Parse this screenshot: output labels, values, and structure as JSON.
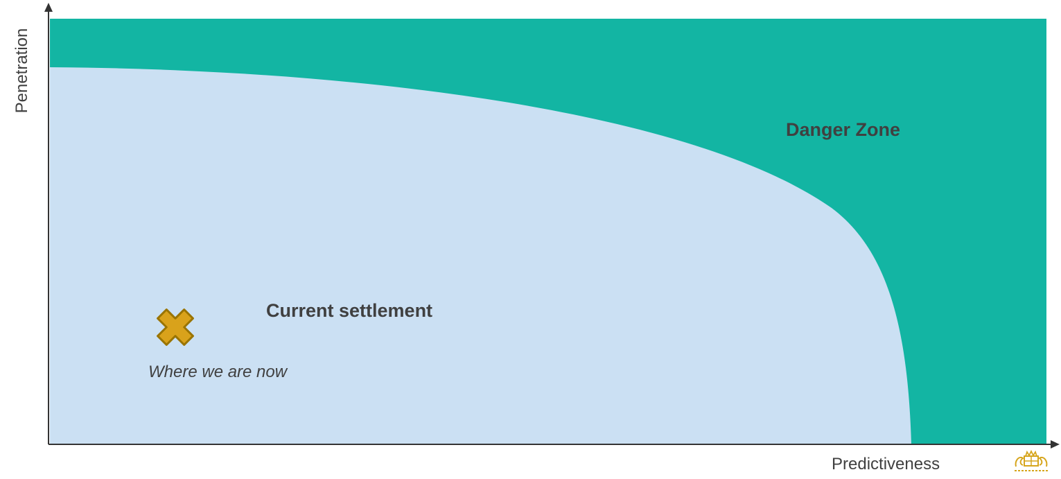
{
  "diagram": {
    "y_axis_label": "Penetration",
    "x_axis_label": "Predictiveness",
    "danger_zone_label": "Danger Zone",
    "safe_zone_label": "Current settlement",
    "position_note": "Where we are now",
    "marker_icon": "x-cross-icon",
    "logo_icon": "crest-logo-icon",
    "colors": {
      "danger_zone": "#13b5a3",
      "safe_zone": "#cbe0f3",
      "marker_fill": "#d9a21b",
      "marker_stroke": "#9a7400",
      "axis": "#333333",
      "text": "#404040",
      "logo": "#d6a51c"
    }
  }
}
